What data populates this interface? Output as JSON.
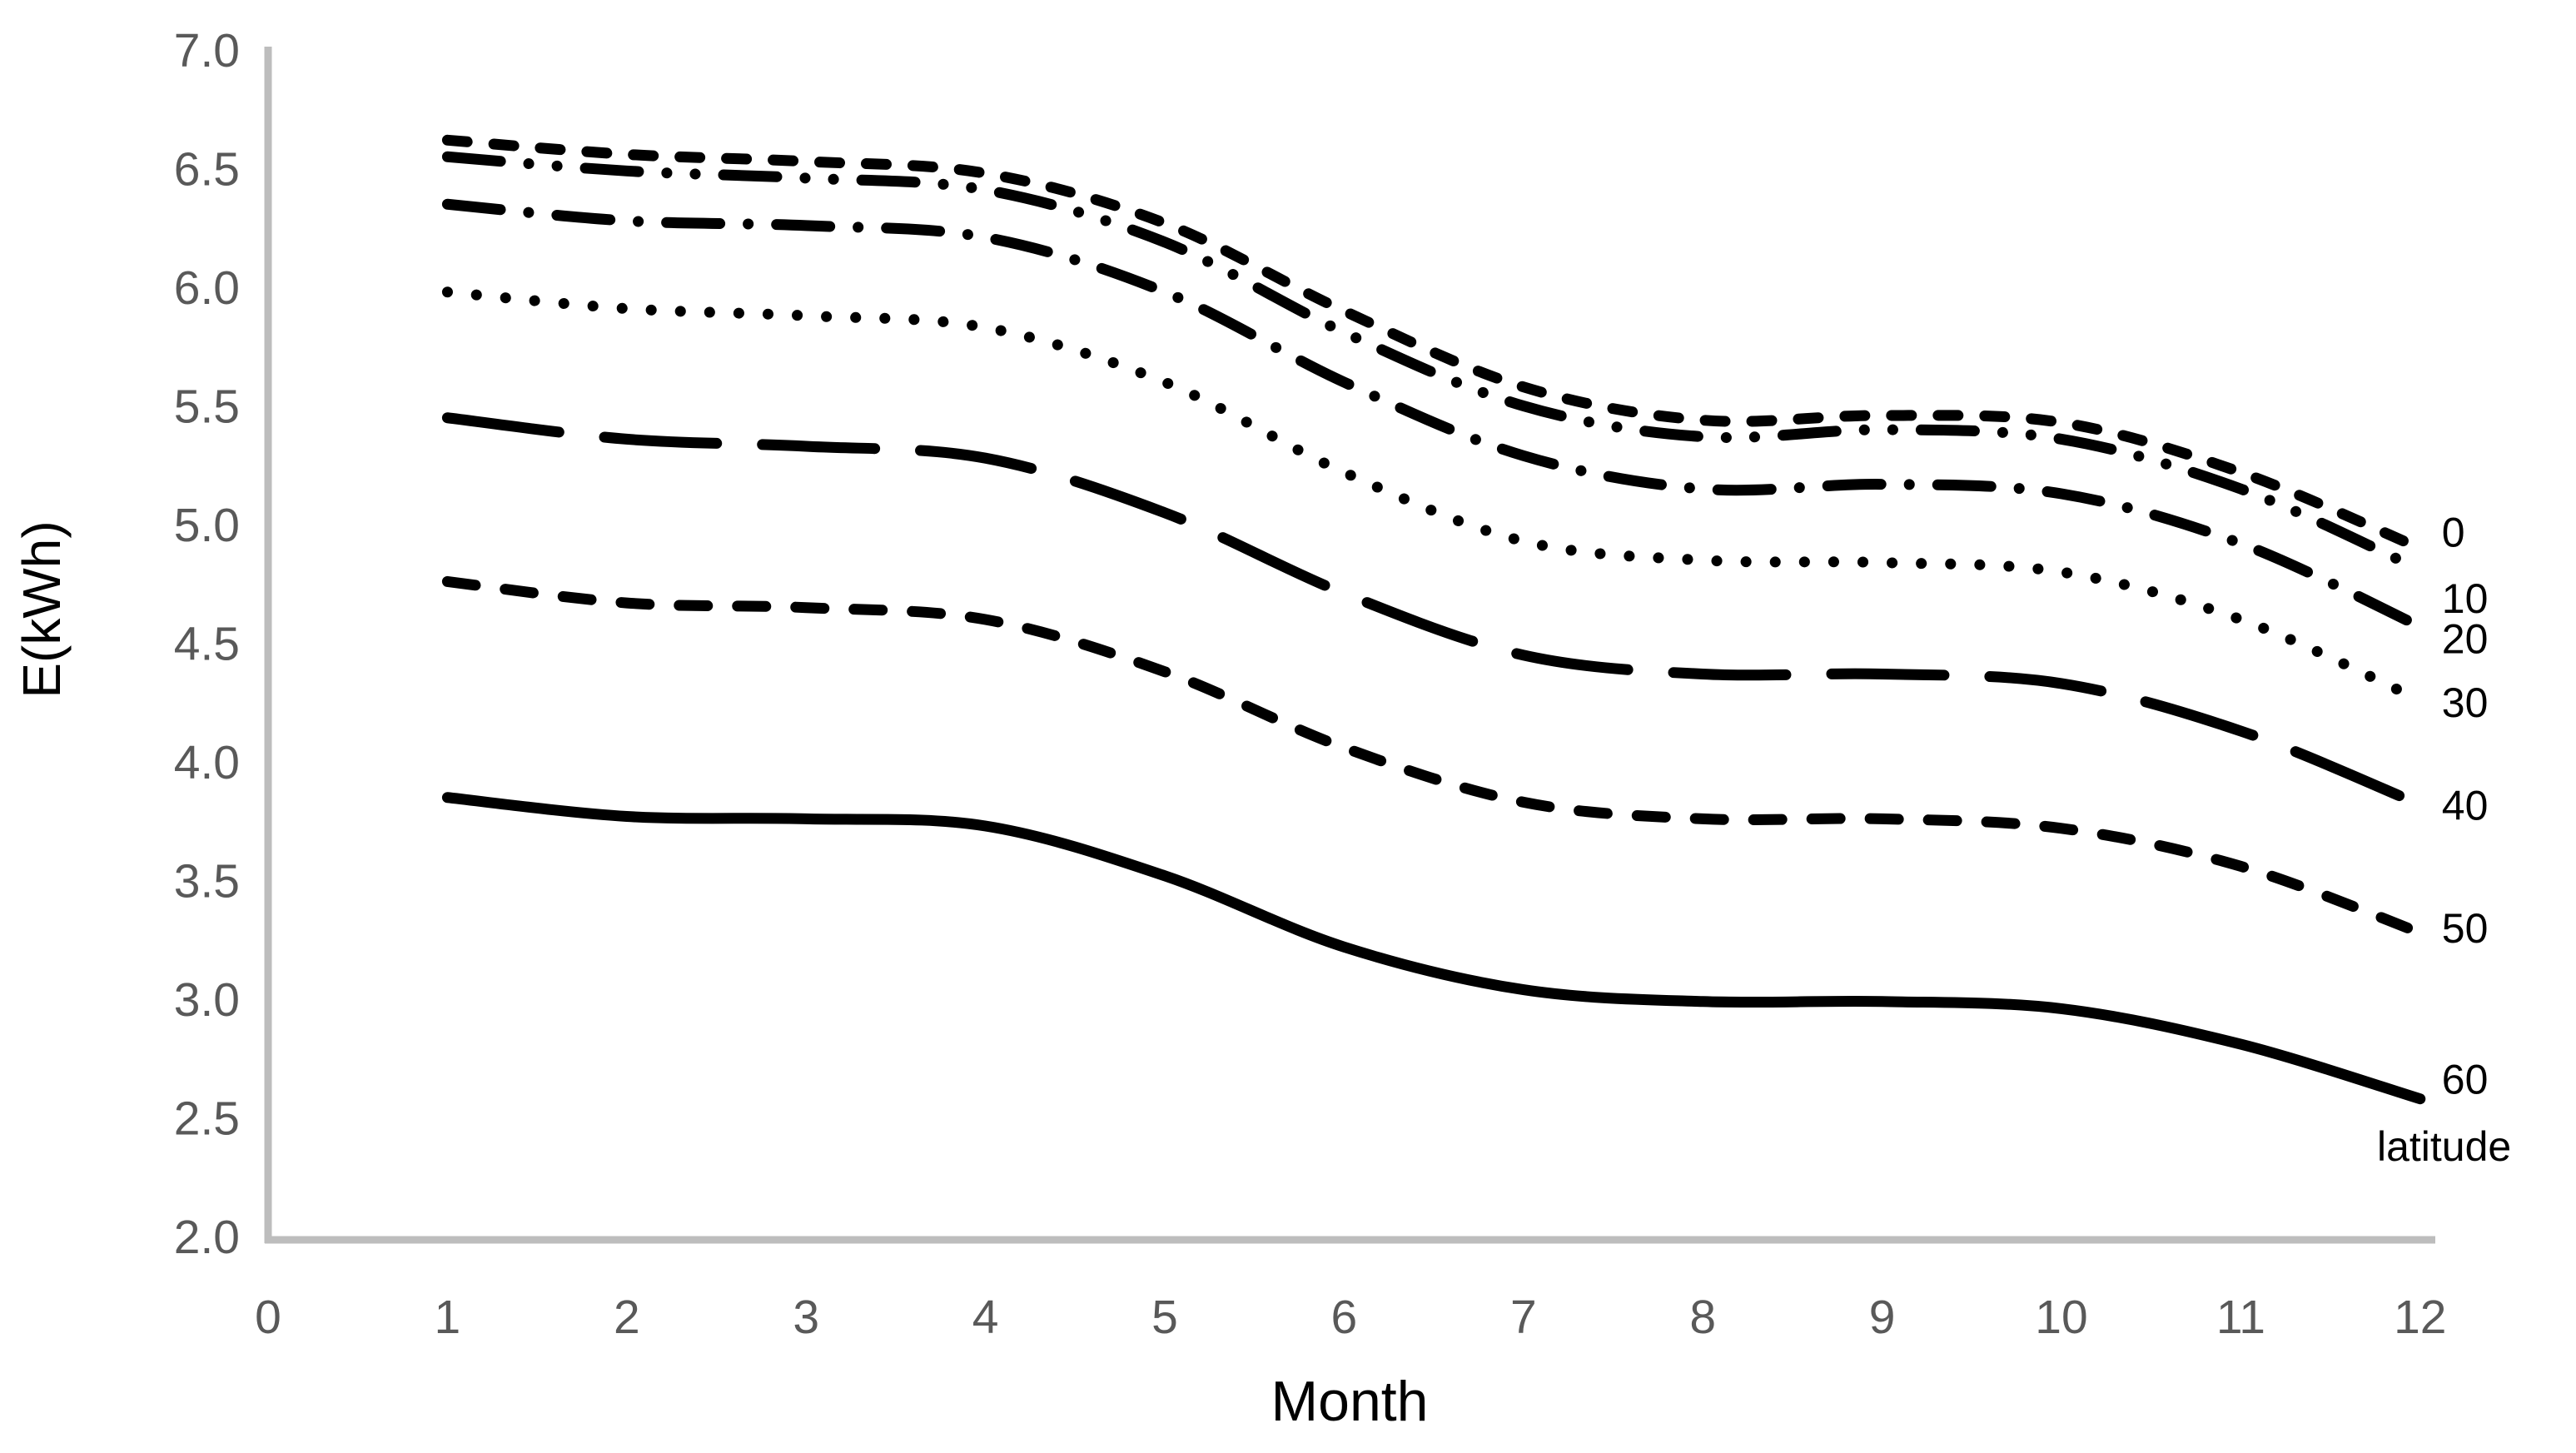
{
  "chart_data": {
    "type": "line",
    "title": "",
    "xlabel": "Month",
    "ylabel": "E(kWh)",
    "legend_title": "latitude",
    "legend_position": "right-end-labels",
    "grid": false,
    "x": [
      1,
      2,
      3,
      4,
      5,
      6,
      7,
      8,
      9,
      10,
      11,
      12
    ],
    "xlim": [
      0,
      12
    ],
    "ylim": [
      2.0,
      7.0
    ],
    "xticks": [
      "0",
      "1",
      "2",
      "3",
      "4",
      "5",
      "6",
      "7",
      "8",
      "9",
      "10",
      "11",
      "12"
    ],
    "yticks": [
      "7.0",
      "6.5",
      "6.0",
      "5.5",
      "5.0",
      "4.5",
      "4.0",
      "3.5",
      "3.0",
      "2.5",
      "2.0"
    ],
    "ytick_values": [
      7.0,
      6.5,
      6.0,
      5.5,
      5.0,
      4.5,
      4.0,
      3.5,
      3.0,
      2.5,
      2.0
    ],
    "xtick_values": [
      0,
      1,
      2,
      3,
      4,
      5,
      6,
      7,
      8,
      9,
      10,
      11,
      12
    ],
    "line_color": "#000000",
    "axis_color": "#bdbdbd",
    "tick_label_color": "#595959",
    "series": [
      {
        "name": "0",
        "dash_style": "short-dash",
        "values": [
          6.62,
          6.56,
          6.53,
          6.48,
          6.27,
          5.9,
          5.58,
          5.44,
          5.46,
          5.43,
          5.22,
          4.9
        ]
      },
      {
        "name": "10",
        "dash_style": "dash-dot-dot",
        "values": [
          6.55,
          6.49,
          6.46,
          6.41,
          6.19,
          5.81,
          5.5,
          5.37,
          5.4,
          5.36,
          5.15,
          4.81
        ]
      },
      {
        "name": "20",
        "dash_style": "dash-dot",
        "values": [
          6.35,
          6.28,
          6.26,
          6.21,
          5.98,
          5.6,
          5.29,
          5.15,
          5.17,
          5.13,
          4.92,
          4.57
        ]
      },
      {
        "name": "30",
        "dash_style": "dotted",
        "values": [
          5.98,
          5.91,
          5.88,
          5.83,
          5.6,
          5.22,
          4.93,
          4.85,
          4.84,
          4.8,
          4.6,
          4.26
        ]
      },
      {
        "name": "40",
        "dash_style": "long-dash",
        "values": [
          5.45,
          5.36,
          5.33,
          5.28,
          5.05,
          4.71,
          4.45,
          4.37,
          4.37,
          4.33,
          4.13,
          3.82
        ]
      },
      {
        "name": "50",
        "dash_style": "medium-dash",
        "values": [
          4.76,
          4.67,
          4.65,
          4.6,
          4.38,
          4.06,
          3.83,
          3.76,
          3.76,
          3.72,
          3.56,
          3.28
        ]
      },
      {
        "name": "60",
        "dash_style": "solid",
        "values": [
          3.85,
          3.77,
          3.76,
          3.73,
          3.52,
          3.22,
          3.04,
          2.99,
          2.99,
          2.96,
          2.81,
          2.58
        ]
      }
    ]
  }
}
